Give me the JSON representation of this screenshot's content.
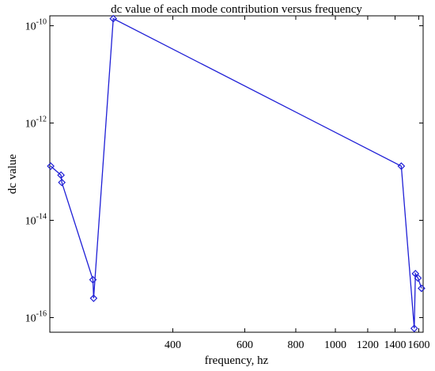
{
  "chart_data": {
    "type": "line",
    "title": "dc value of each mode contribution versus frequency",
    "xlabel": "frequency, hz",
    "ylabel": "dc value",
    "x_scale": "log",
    "y_scale": "log",
    "xlim": [
      200,
      1640
    ],
    "ylim": [
      5e-17,
      1.6e-10
    ],
    "x_ticks": [
      {
        "value": 400,
        "label": "400"
      },
      {
        "value": 600,
        "label": "600"
      },
      {
        "value": 800,
        "label": "800"
      },
      {
        "value": 1000,
        "label": "1000"
      },
      {
        "value": 1200,
        "label": "1200"
      },
      {
        "value": 1400,
        "label": "1400"
      },
      {
        "value": 1600,
        "label": "1600"
      }
    ],
    "y_ticks": [
      {
        "value": 1e-10,
        "base": "10",
        "exponent": "-10"
      },
      {
        "value": 1e-12,
        "base": "10",
        "exponent": "-12"
      },
      {
        "value": 1e-14,
        "base": "10",
        "exponent": "-14"
      },
      {
        "value": 1e-16,
        "base": "10",
        "exponent": "-16"
      }
    ],
    "grid": false,
    "marker": "diamond",
    "line_color": "#1f1fd6",
    "series": [
      {
        "x": [
          201,
          213,
          214,
          255,
          256,
          286,
          1450,
          1560,
          1570,
          1593,
          1625
        ],
        "y": [
          1.3e-13,
          8.5e-14,
          6e-14,
          6e-16,
          2.5e-16,
          1.4e-10,
          1.3e-13,
          6e-17,
          8e-16,
          6.5e-16,
          4e-16
        ]
      }
    ]
  }
}
